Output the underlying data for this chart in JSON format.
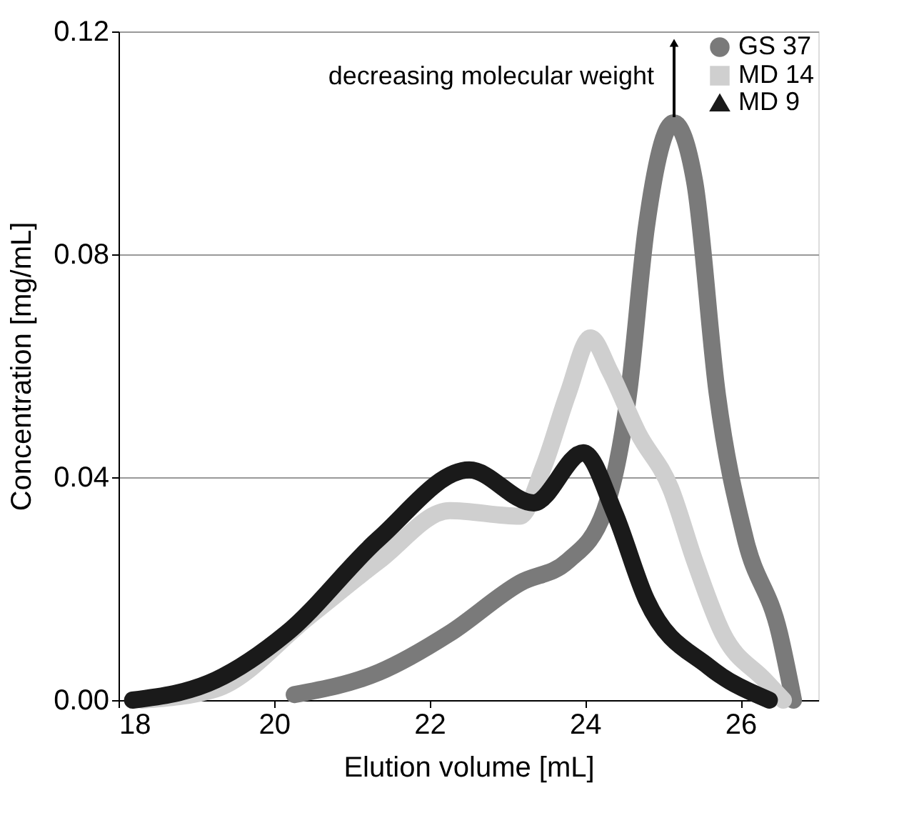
{
  "chart_data": {
    "type": "line",
    "xlabel": "Elution volume [mL]",
    "ylabel": "Concentration [mg/mL]",
    "annotations": [
      "decreasing molecular weight"
    ],
    "xlim": [
      18,
      27
    ],
    "xticks": [
      18,
      20,
      22,
      24,
      26
    ],
    "ylim": [
      0,
      0.12
    ],
    "yticks": [
      {
        "value": 0,
        "label": "0.00"
      },
      {
        "value": 0.04,
        "label": "0.04"
      },
      {
        "value": 0.08,
        "label": "0.08"
      },
      {
        "value": 0.12,
        "label": "0.12"
      }
    ],
    "grid": "y",
    "legend": "top right",
    "series": [
      {
        "name": "GS 37",
        "color": "#7a7a7a",
        "marker": "circle",
        "x": [
          20.26,
          21.35,
          22.26,
          23.16,
          23.78,
          24.25,
          24.56,
          24.79,
          25.14,
          25.41,
          25.7,
          26.06,
          26.5,
          26.68
        ],
        "values": [
          0.001,
          0.005,
          0.012,
          0.021,
          0.025,
          0.034,
          0.055,
          0.085,
          0.1036,
          0.093,
          0.055,
          0.029,
          0.012,
          0.0
        ]
      },
      {
        "name": "MD 14",
        "color": "#cfcfcf",
        "marker": "square",
        "x": [
          18.3,
          19.25,
          20.45,
          21.35,
          22.26,
          23.16,
          23.47,
          23.78,
          24.07,
          24.32,
          24.68,
          25.1,
          25.41,
          25.77,
          26.31,
          26.55
        ],
        "values": [
          0.0,
          0.002,
          0.015,
          0.025,
          0.034,
          0.033,
          0.042,
          0.055,
          0.065,
          0.059,
          0.048,
          0.038,
          0.025,
          0.012,
          0.0036,
          0.0
        ]
      },
      {
        "name": "MD 9",
        "color": "#1a1a1a",
        "marker": "triangle",
        "x": [
          18.18,
          19.25,
          20.16,
          21.35,
          22.51,
          23.34,
          23.98,
          24.38,
          24.79,
          25.59,
          26.37
        ],
        "values": [
          0.0,
          0.0036,
          0.012,
          0.029,
          0.0413,
          0.0354,
          0.0444,
          0.0336,
          0.018,
          0.006,
          0.0
        ]
      }
    ]
  }
}
